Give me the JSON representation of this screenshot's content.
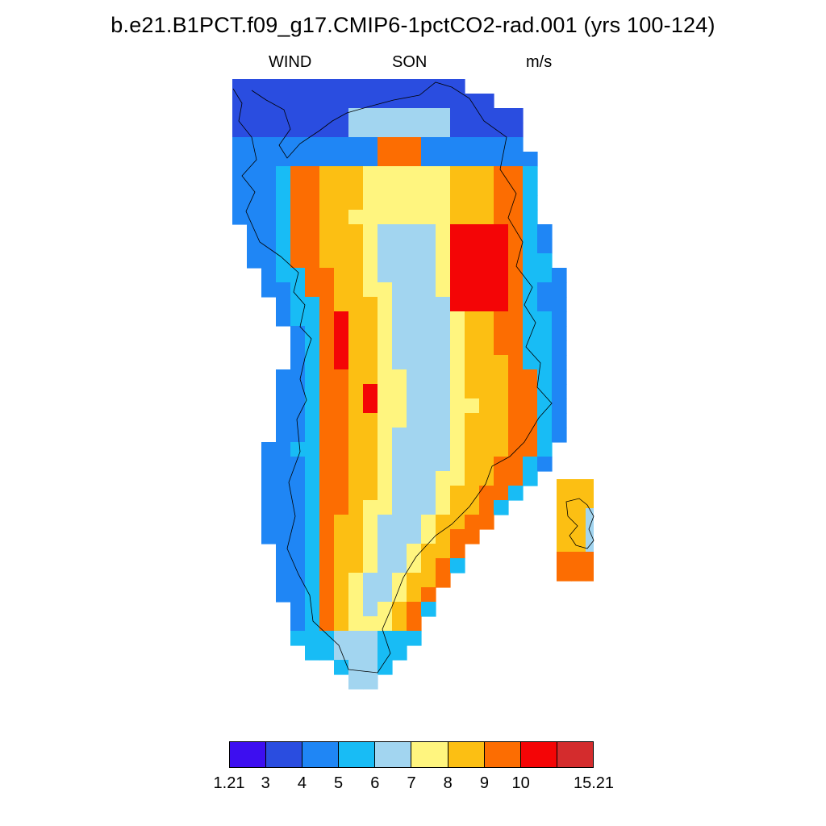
{
  "title": "b.e21.B1PCT.f09_g17.CMIP6-1pctCO2-rad.001 (yrs 100-124)",
  "subtitle": {
    "variable": "WIND",
    "season": "SON",
    "units": "m/s"
  },
  "colorbar": {
    "colors": [
      "#3d0ef0",
      "#2a4de0",
      "#1f86f5",
      "#18bcf5",
      "#a2d5f0",
      "#fff57f",
      "#fcbf13",
      "#fc6d02",
      "#f40506",
      "#d42c2d"
    ],
    "labels": [
      "1.21",
      "3",
      "4",
      "5",
      "6",
      "7",
      "8",
      "9",
      "10",
      "15.21"
    ],
    "label_positions": [
      "edge-left",
      "boundary-1",
      "boundary-2",
      "boundary-3",
      "boundary-4",
      "boundary-5",
      "boundary-6",
      "boundary-7",
      "boundary-8",
      "edge-right"
    ]
  },
  "map": {
    "region": "Greenland",
    "field": "WIND",
    "bins": [
      "blue",
      "royal",
      "dodger",
      "sky",
      "light",
      "yellow",
      "gold",
      "orange",
      "red",
      "darkred"
    ]
  }
}
